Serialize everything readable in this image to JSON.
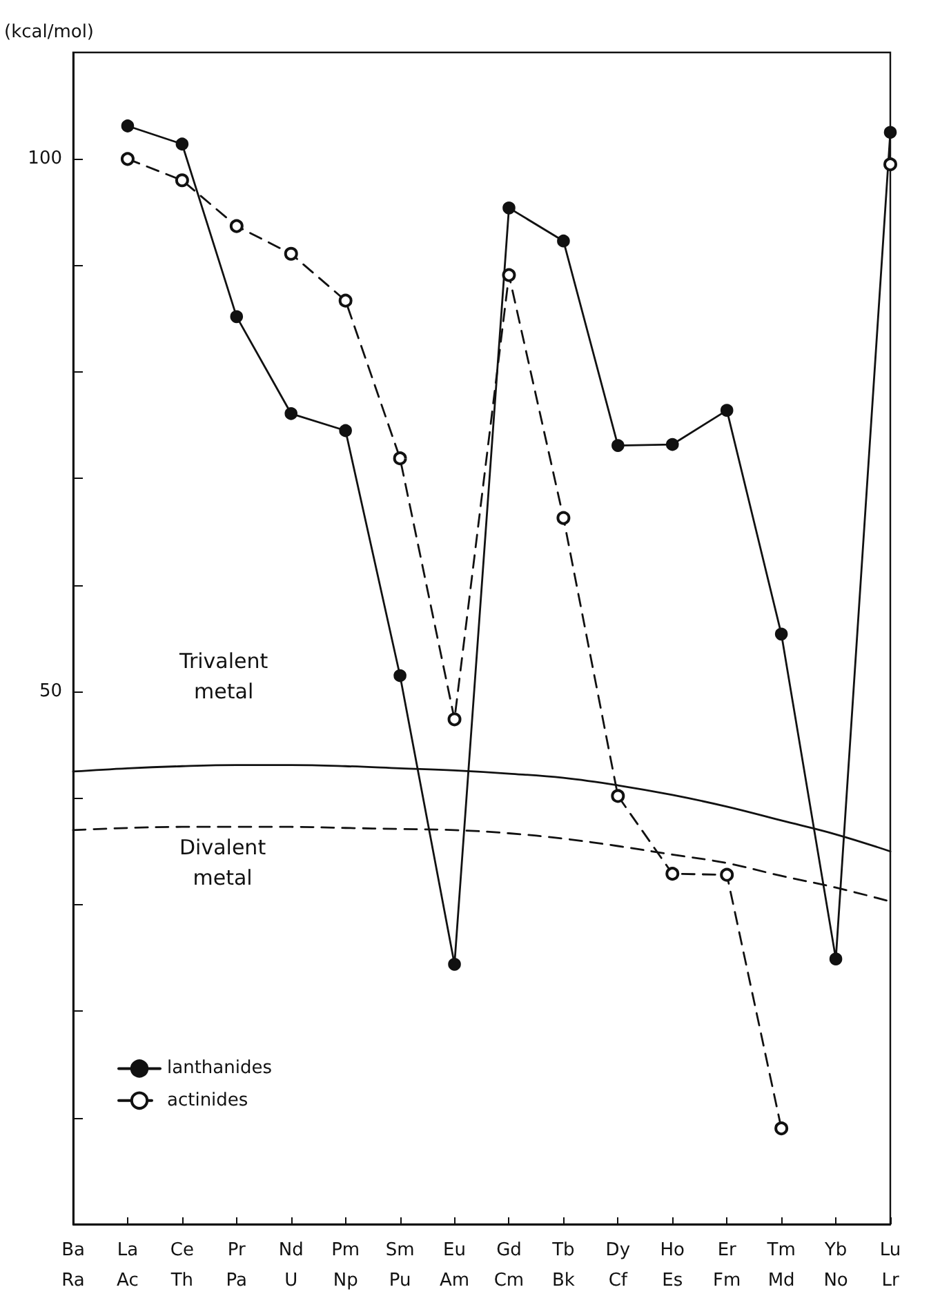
{
  "chart_data": {
    "type": "line",
    "ylabel": "(kcal/mol)",
    "categories": [
      "Ba\nRa",
      "La\nAc",
      "Ce\nTh",
      "Pr\nPa",
      "Nd\nU",
      "Pm\nNp",
      "Sm\nPu",
      "Eu\nAm",
      "Gd\nCm",
      "Tb\nBk",
      "Dy\nCf",
      "Ho\nEs",
      "Er\nFm",
      "Tm\nMd",
      "Yb\nNo",
      "Lu\nLr"
    ],
    "series": [
      {
        "name": "lanthanides",
        "color": "#111111",
        "marker": "circle",
        "line_style": "solid",
        "values": [
          null,
          103.1,
          101.4,
          85.2,
          76.1,
          74.5,
          51.5,
          24.4,
          95.4,
          92.3,
          73.1,
          73.2,
          76.4,
          55.4,
          24.9,
          102.5
        ]
      },
      {
        "name": "actinides",
        "color": "#111111",
        "marker": "open circle",
        "line_style": "dashed",
        "values": [
          null,
          100.0,
          98.0,
          93.7,
          91.1,
          86.7,
          71.9,
          47.4,
          89.1,
          66.3,
          40.2,
          32.9,
          32.8,
          9.0,
          null,
          99.5
        ]
      },
      {
        "color": "#111111",
        "marker": "none",
        "line_style": "solid",
        "values": [
          42.5,
          42.8,
          43.0,
          43.1,
          43.1,
          43.0,
          42.8,
          42.6,
          42.3,
          41.9,
          41.2,
          40.3,
          39.2,
          37.9,
          36.6,
          35.0
        ]
      },
      {
        "color": "#111111",
        "marker": "none",
        "line_style": "dashed",
        "values": [
          37.0,
          37.2,
          37.3,
          37.3,
          37.3,
          37.2,
          37.1,
          37.0,
          36.7,
          36.2,
          35.5,
          34.7,
          33.9,
          32.7,
          31.6,
          30.3
        ]
      }
    ],
    "annotations": [
      "Trivalent\nmetal",
      "Divalent\nmetal"
    ],
    "ylim": [
      0,
      110
    ],
    "yticks": [
      {
        "value": 10,
        "label": null
      },
      {
        "value": 20,
        "label": null
      },
      {
        "value": 30,
        "label": null
      },
      {
        "value": 40,
        "label": null
      },
      50,
      {
        "value": 60,
        "label": null
      },
      {
        "value": 70,
        "label": null
      },
      {
        "value": 80,
        "label": null
      },
      {
        "value": 90,
        "label": null
      },
      100
    ],
    "grid": false,
    "legend": "bottom left"
  }
}
